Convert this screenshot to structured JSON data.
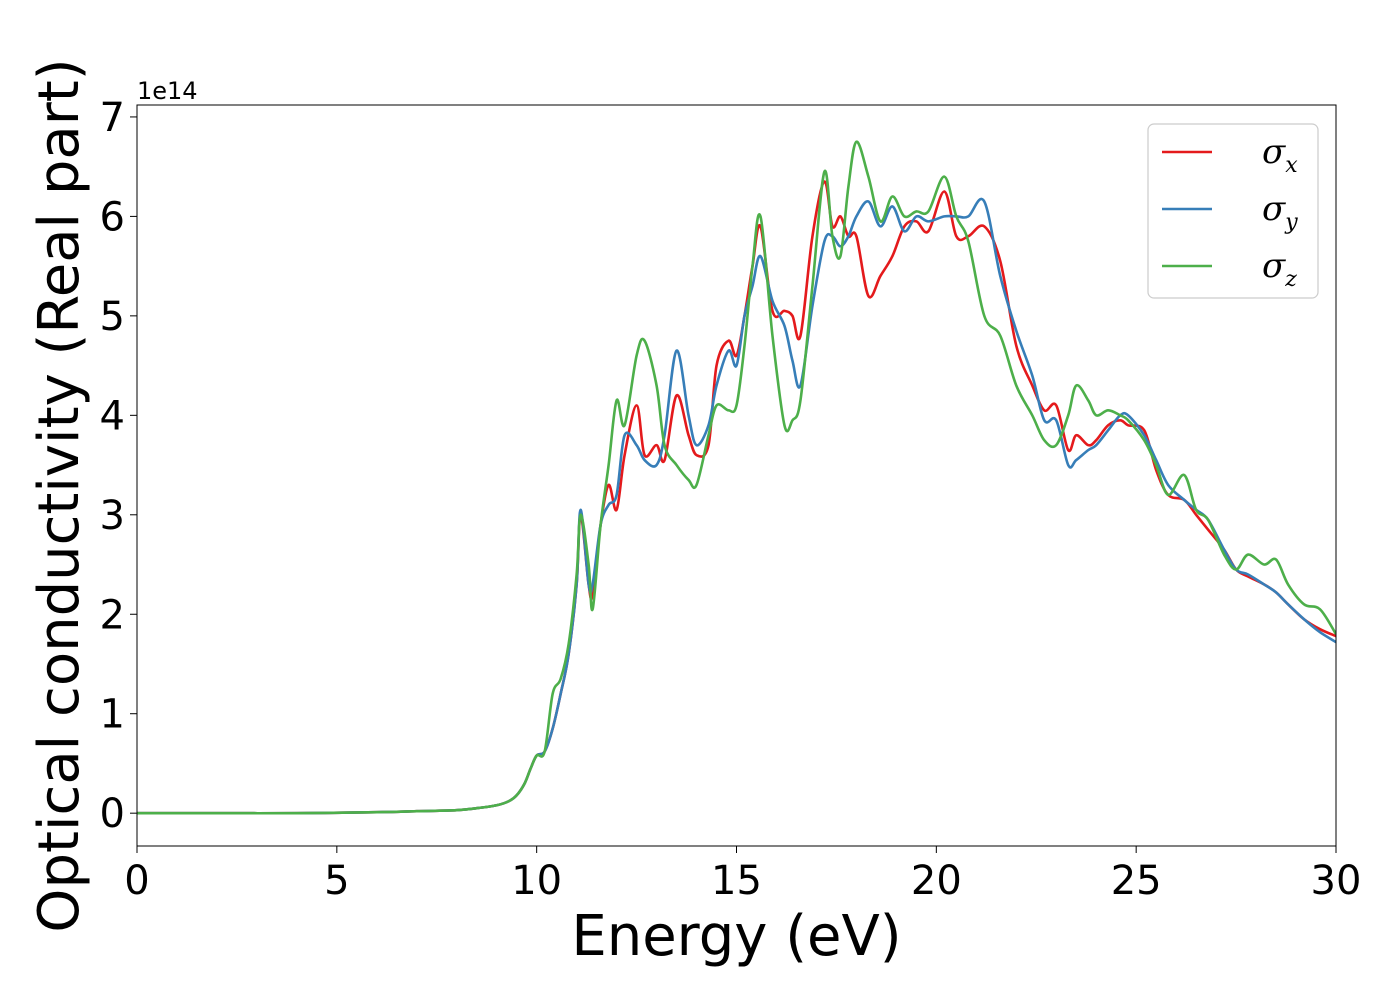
{
  "chart_data": {
    "type": "line",
    "xlabel": "Energy (eV)",
    "ylabel": "Optical conductivity (Real part)",
    "y_offset_label": "1e14",
    "xlim": [
      0,
      30
    ],
    "ylim": [
      -0.33,
      7.12
    ],
    "x_ticks": [
      "0",
      "5",
      "10",
      "15",
      "20",
      "25",
      "30"
    ],
    "y_ticks": [
      "0",
      "1",
      "2",
      "3",
      "4",
      "5",
      "6",
      "7"
    ],
    "grid": false,
    "legend_position": "top-right",
    "series": [
      {
        "name": "σx",
        "symbol": "σ",
        "subscript": "x",
        "color": "#e41a1c",
        "x": [
          0,
          2,
          4,
          6,
          7,
          8,
          8.5,
          9,
          9.3,
          9.5,
          9.7,
          9.85,
          10,
          10.2,
          10.4,
          10.6,
          10.8,
          11,
          11.1,
          11.3,
          11.4,
          11.6,
          11.8,
          12,
          12.2,
          12.5,
          12.7,
          13,
          13.2,
          13.5,
          13.8,
          14,
          14.3,
          14.5,
          14.8,
          15,
          15.2,
          15.4,
          15.6,
          15.9,
          16.2,
          16.4,
          16.6,
          16.9,
          17.2,
          17.4,
          17.6,
          17.8,
          18,
          18.3,
          18.6,
          18.9,
          19.2,
          19.5,
          19.8,
          20.2,
          20.5,
          20.8,
          21.2,
          21.6,
          22,
          22.4,
          22.7,
          23,
          23.3,
          23.5,
          23.8,
          24,
          24.3,
          24.6,
          24.8,
          25.2,
          25.5,
          25.8,
          26.2,
          26.5,
          26.8,
          27.2,
          27.5,
          27.8,
          28.2,
          28.5,
          28.8,
          29.2,
          29.6,
          30
        ],
        "y": [
          0,
          0,
          0,
          0.01,
          0.02,
          0.03,
          0.05,
          0.08,
          0.12,
          0.18,
          0.3,
          0.45,
          0.58,
          0.62,
          0.85,
          1.2,
          1.6,
          2.3,
          3.0,
          2.3,
          2.2,
          2.9,
          3.3,
          3.05,
          3.6,
          4.1,
          3.6,
          3.7,
          3.55,
          4.2,
          3.8,
          3.6,
          3.7,
          4.5,
          4.75,
          4.6,
          5.0,
          5.5,
          5.9,
          5.05,
          5.05,
          5.0,
          4.8,
          5.8,
          6.35,
          5.9,
          6.0,
          5.8,
          5.8,
          5.2,
          5.4,
          5.6,
          5.9,
          5.95,
          5.85,
          6.25,
          5.8,
          5.8,
          5.9,
          5.55,
          4.7,
          4.3,
          4.05,
          4.1,
          3.65,
          3.8,
          3.7,
          3.75,
          3.9,
          3.95,
          3.9,
          3.85,
          3.45,
          3.2,
          3.15,
          3.0,
          2.85,
          2.65,
          2.45,
          2.38,
          2.3,
          2.22,
          2.1,
          1.95,
          1.85,
          1.78
        ]
      },
      {
        "name": "σy",
        "symbol": "σ",
        "subscript": "y",
        "color": "#377eb8",
        "x": [
          0,
          2,
          4,
          6,
          7,
          8,
          8.5,
          9,
          9.3,
          9.5,
          9.7,
          9.85,
          10,
          10.2,
          10.4,
          10.6,
          10.8,
          11,
          11.1,
          11.3,
          11.4,
          11.6,
          11.8,
          12,
          12.2,
          12.5,
          12.7,
          13,
          13.2,
          13.5,
          13.8,
          14,
          14.3,
          14.5,
          14.8,
          15,
          15.2,
          15.4,
          15.6,
          15.9,
          16.2,
          16.4,
          16.6,
          16.9,
          17.2,
          17.4,
          17.6,
          17.8,
          18,
          18.3,
          18.6,
          18.9,
          19.2,
          19.5,
          19.8,
          20.2,
          20.5,
          20.8,
          21.2,
          21.6,
          22,
          22.4,
          22.7,
          23,
          23.3,
          23.5,
          23.8,
          24,
          24.3,
          24.6,
          24.8,
          25.2,
          25.5,
          25.8,
          26.2,
          26.5,
          26.8,
          27.2,
          27.5,
          27.8,
          28.2,
          28.5,
          28.8,
          29.2,
          29.6,
          30
        ],
        "y": [
          0,
          0,
          0,
          0.01,
          0.02,
          0.03,
          0.05,
          0.08,
          0.12,
          0.18,
          0.3,
          0.45,
          0.58,
          0.62,
          0.85,
          1.2,
          1.6,
          2.3,
          3.05,
          2.3,
          2.3,
          2.9,
          3.1,
          3.2,
          3.8,
          3.7,
          3.55,
          3.5,
          3.8,
          4.65,
          4.0,
          3.7,
          3.9,
          4.3,
          4.65,
          4.5,
          5.0,
          5.3,
          5.6,
          5.15,
          4.9,
          4.55,
          4.3,
          5.1,
          5.75,
          5.8,
          5.7,
          5.8,
          6.0,
          6.15,
          5.9,
          6.1,
          5.85,
          6.0,
          5.95,
          6.0,
          6.0,
          6.0,
          6.15,
          5.4,
          4.85,
          4.4,
          3.95,
          3.95,
          3.5,
          3.55,
          3.65,
          3.7,
          3.85,
          4.0,
          4.0,
          3.8,
          3.55,
          3.3,
          3.15,
          3.05,
          2.95,
          2.65,
          2.45,
          2.4,
          2.3,
          2.22,
          2.1,
          1.95,
          1.82,
          1.72
        ]
      },
      {
        "name": "σz",
        "symbol": "σ",
        "subscript": "z",
        "color": "#4daf4a",
        "x": [
          0,
          2,
          4,
          6,
          7,
          8,
          8.5,
          9,
          9.3,
          9.5,
          9.7,
          9.85,
          10,
          10.2,
          10.4,
          10.6,
          10.8,
          11,
          11.1,
          11.3,
          11.4,
          11.6,
          11.8,
          12,
          12.2,
          12.5,
          12.7,
          13,
          13.2,
          13.5,
          13.8,
          14,
          14.3,
          14.5,
          14.8,
          15,
          15.2,
          15.4,
          15.6,
          15.9,
          16.2,
          16.4,
          16.6,
          16.9,
          17.2,
          17.4,
          17.6,
          17.8,
          18,
          18.3,
          18.6,
          18.9,
          19.2,
          19.5,
          19.8,
          20.2,
          20.5,
          20.8,
          21.2,
          21.6,
          22,
          22.4,
          22.7,
          23,
          23.3,
          23.5,
          23.8,
          24,
          24.3,
          24.6,
          24.8,
          25.2,
          25.5,
          25.8,
          26.2,
          26.5,
          26.8,
          27.2,
          27.5,
          27.8,
          28.2,
          28.5,
          28.8,
          29.2,
          29.6,
          30
        ],
        "y": [
          0,
          0,
          0,
          0.01,
          0.02,
          0.03,
          0.05,
          0.08,
          0.12,
          0.18,
          0.3,
          0.45,
          0.58,
          0.62,
          1.2,
          1.35,
          1.7,
          2.4,
          3.0,
          2.5,
          2.05,
          2.9,
          3.5,
          4.15,
          3.9,
          4.6,
          4.75,
          4.3,
          3.7,
          3.5,
          3.35,
          3.3,
          3.8,
          4.1,
          4.05,
          4.1,
          4.7,
          5.5,
          6.0,
          4.8,
          3.9,
          3.95,
          4.15,
          5.3,
          6.45,
          5.8,
          5.6,
          6.3,
          6.75,
          6.4,
          5.95,
          6.2,
          6.0,
          6.05,
          6.05,
          6.4,
          6.0,
          5.75,
          5.0,
          4.8,
          4.3,
          4.0,
          3.75,
          3.7,
          4.0,
          4.3,
          4.15,
          4.0,
          4.05,
          4.0,
          3.95,
          3.75,
          3.5,
          3.2,
          3.4,
          3.05,
          2.95,
          2.6,
          2.45,
          2.6,
          2.5,
          2.55,
          2.3,
          2.1,
          2.05,
          1.8
        ]
      }
    ]
  }
}
